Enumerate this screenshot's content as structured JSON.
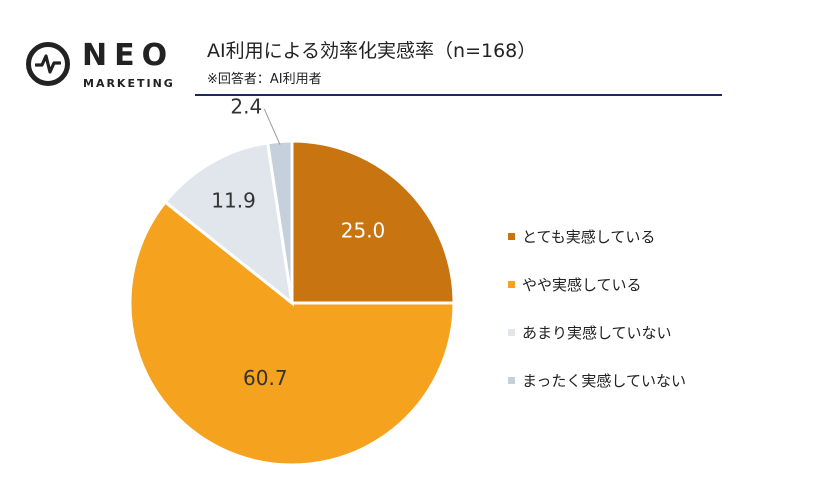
{
  "logo": {
    "name": "NEO",
    "sub": "MARKETING"
  },
  "header": {
    "title": "AI利用による効率化実感率（n=168）",
    "subtitle": "※回答者：AI利用者"
  },
  "chart_data": {
    "type": "pie",
    "title": "AI利用による効率化実感率（n=168）",
    "categories": [
      "とても実感している",
      "やや実感している",
      "あまり実感していない",
      "まったく実感していない"
    ],
    "values": [
      25.0,
      60.7,
      11.9,
      2.4
    ],
    "labels": [
      "25.0",
      "60.7",
      "11.9",
      "2.4"
    ],
    "colors": [
      "#c87410",
      "#f5a21e",
      "#e1e6ec",
      "#c6cfdc"
    ],
    "label_colors": [
      "#ffffff",
      "#333333",
      "#333333",
      "#333333"
    ],
    "start": "12 o'clock",
    "direction": "clockwise",
    "legend": "right"
  }
}
